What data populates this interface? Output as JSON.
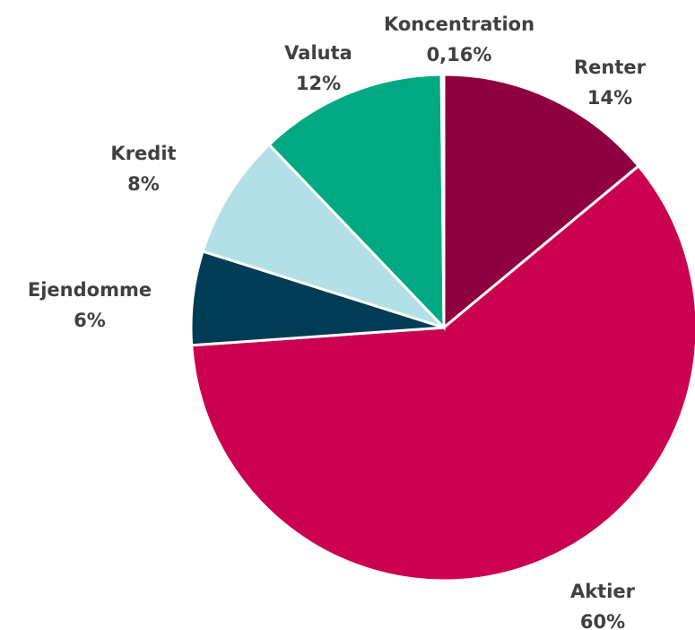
{
  "chart_data": {
    "type": "pie",
    "categories": [
      "Renter",
      "Aktier",
      "Ejendomme",
      "Kredit",
      "Valuta",
      "Koncentration"
    ],
    "values": [
      14,
      60,
      6,
      8,
      12,
      0.16
    ],
    "value_labels": [
      "14%",
      "60%",
      "6%",
      "8%",
      "12%",
      "0,16%"
    ],
    "colors": [
      "#8f0040",
      "#cc0050",
      "#003c55",
      "#b3e0e6",
      "#00a982",
      "#7a7a7a"
    ]
  }
}
